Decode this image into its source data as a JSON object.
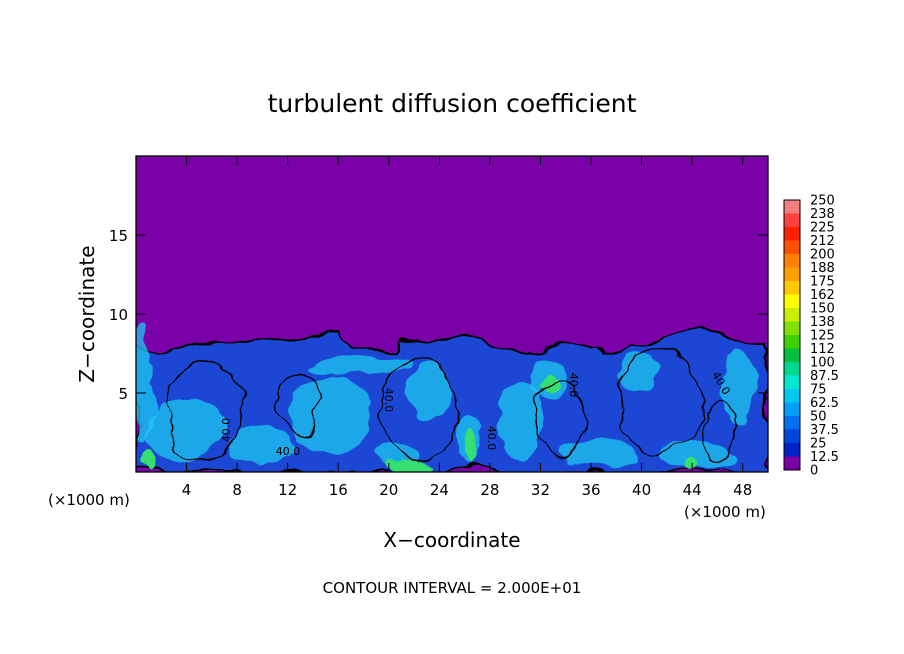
{
  "chart_data": {
    "type": "heatmap",
    "title": "turbulent diffusion coefficient",
    "xlabel": "X−coordinate",
    "ylabel": "Z−coordinate",
    "x_unit_left": "(×1000 m)",
    "x_unit_right": "(×1000 m)",
    "xlim": [
      0,
      50
    ],
    "ylim": [
      0,
      20
    ],
    "x_ticks": [
      "4",
      "8",
      "12",
      "16",
      "20",
      "24",
      "28",
      "32",
      "36",
      "40",
      "44",
      "48"
    ],
    "y_ticks": [
      "5",
      "10",
      "15"
    ],
    "footer": "CONTOUR INTERVAL = 2.000E+01",
    "contour_label": "40.0",
    "mixed_layer_top_z": 8.3,
    "colorbar": {
      "levels": [
        "250",
        "238",
        "225",
        "212",
        "200",
        "188",
        "175",
        "162",
        "150",
        "138",
        "125",
        "112",
        "100",
        "87.5",
        "75",
        "62.5",
        "50",
        "37.5",
        "25",
        "12.5",
        "0"
      ],
      "colors": [
        "#f08080",
        "#ff4040",
        "#ff2000",
        "#ff5000",
        "#ff8000",
        "#ffa000",
        "#ffc800",
        "#ffff00",
        "#c8f000",
        "#80e000",
        "#40d000",
        "#00c040",
        "#00d890",
        "#00e8d0",
        "#00c8f0",
        "#00a0f8",
        "#0070f0",
        "#0044e0",
        "#0020c8",
        "#7a00a8"
      ]
    },
    "colors": {
      "background": "#7a00a8",
      "layer": "#1a46d4",
      "high": "#22c8f0",
      "peak": "#34e070"
    }
  }
}
